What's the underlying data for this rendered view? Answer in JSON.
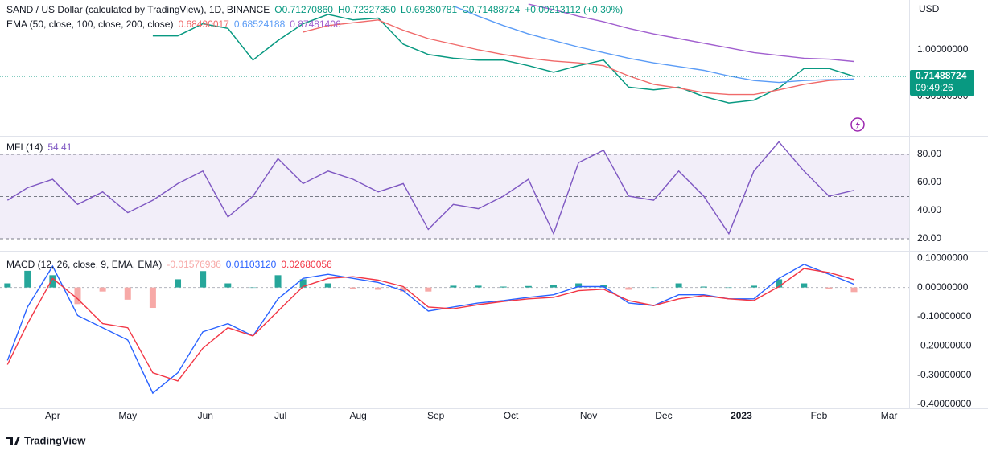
{
  "header": {
    "symbol": "SAND / US Dollar (calculated by TradingView), 1D, BINANCE",
    "ohlc": [
      "O0.71270860",
      "H0.72327850",
      "L0.69280781",
      "C0.71488724"
    ],
    "change": "+0.00213112 (+0.30%)",
    "currency": "USD"
  },
  "footer": "TradingView",
  "chart_data": [
    {
      "type": "line",
      "indicator": "EMA (50, close, 100, close, 200, close)",
      "x": [
        -18,
        -10,
        0,
        10,
        20,
        30,
        40,
        50,
        60,
        70,
        80,
        90,
        100,
        110,
        120,
        130,
        140,
        150,
        160,
        170,
        180,
        190,
        200,
        210,
        220,
        230,
        240,
        250,
        260,
        270,
        280,
        290,
        300,
        310,
        320
      ],
      "xlim": [
        -21,
        342
      ],
      "xticks": [
        {
          "value": 0,
          "label": "Apr"
        },
        {
          "value": 30,
          "label": "May"
        },
        {
          "value": 61,
          "label": "Jun"
        },
        {
          "value": 91,
          "label": "Jul"
        },
        {
          "value": 122,
          "label": "Aug"
        },
        {
          "value": 153,
          "label": "Sep"
        },
        {
          "value": 183,
          "label": "Oct"
        },
        {
          "value": 214,
          "label": "Nov"
        },
        {
          "value": 244,
          "label": "Dec"
        },
        {
          "value": 275,
          "label": "2023"
        },
        {
          "value": 306,
          "label": "Feb"
        },
        {
          "value": 334,
          "label": "Mar"
        }
      ],
      "ylim": [
        0.086,
        1.534
      ],
      "yticks": [
        {
          "value": 1,
          "label": "1.00000000"
        },
        {
          "value": 0.5,
          "label": "0.50000000"
        }
      ],
      "series": [
        {
          "color": "#089981",
          "values": [
            null,
            null,
            null,
            null,
            null,
            null,
            1.15,
            1.15,
            1.28,
            1.23,
            0.89,
            1.1,
            1.28,
            1.38,
            1.32,
            1.34,
            1.06,
            0.95,
            0.91,
            0.89,
            0.89,
            0.83,
            0.76,
            0.83,
            0.89,
            0.6,
            0.57,
            0.6,
            0.5,
            0.43,
            0.46,
            0.59,
            0.8,
            0.8,
            0.71488724
          ]
        },
        {
          "color": "#f06a6a",
          "values": [
            null,
            null,
            null,
            null,
            null,
            null,
            null,
            null,
            null,
            null,
            null,
            null,
            1.19,
            1.26,
            1.29,
            1.32,
            1.21,
            1.12,
            1.06,
            1.0,
            0.95,
            0.91,
            0.88,
            0.86,
            0.83,
            0.72,
            0.63,
            0.59,
            0.54,
            0.52,
            0.52,
            0.57,
            0.63,
            0.67,
            0.68490017
          ]
        },
        {
          "color": "#5b9cf6",
          "values": [
            null,
            null,
            null,
            null,
            null,
            null,
            null,
            null,
            null,
            null,
            null,
            null,
            null,
            null,
            null,
            null,
            null,
            null,
            1.47,
            1.36,
            1.26,
            1.17,
            1.1,
            1.03,
            0.97,
            0.91,
            0.86,
            0.82,
            0.78,
            0.72,
            0.67,
            0.65,
            0.67,
            0.68,
            0.68524188
          ]
        },
        {
          "color": "#a15fcf",
          "values": [
            null,
            null,
            null,
            null,
            null,
            null,
            null,
            null,
            null,
            null,
            null,
            null,
            null,
            null,
            null,
            null,
            null,
            null,
            null,
            null,
            null,
            1.49,
            1.43,
            1.36,
            1.3,
            1.23,
            1.17,
            1.12,
            1.07,
            1.02,
            0.97,
            0.94,
            0.91,
            0.9,
            0.87481406
          ]
        }
      ],
      "last_price": {
        "time": "09:49:26",
        "color": "#089981"
      }
    },
    {
      "type": "line",
      "title": "MFI (14)",
      "ylim": [
        12,
        92
      ],
      "yticks": [
        {
          "value": 80,
          "label": "80.00"
        },
        {
          "value": 60,
          "label": "60.00"
        },
        {
          "value": 40,
          "label": "40.00"
        },
        {
          "value": 20,
          "label": "20.00"
        }
      ],
      "levels": [
        20,
        50,
        80
      ],
      "band_color": "rgba(126,87,194,0.1)",
      "series": [
        {
          "color": "#7e57c2",
          "values": [
            47.4,
            56.3,
            62.2,
            44.4,
            53.3,
            38.5,
            47.4,
            59.2,
            68.1,
            35.5,
            50.3,
            77.0,
            59.2,
            68.1,
            62.2,
            53.3,
            59.2,
            26.6,
            44.4,
            41.4,
            50.3,
            62.2,
            23.6,
            74.1,
            83.0,
            50.3,
            47.4,
            68.1,
            50.3,
            23.6,
            68.1,
            88.9,
            68.1,
            50.3,
            54.41
          ]
        }
      ]
    },
    {
      "type": "line",
      "title": "MACD (12, 26, close, 9, EMA, EMA)",
      "ylim": [
        -0.414,
        0.12
      ],
      "yticks": [
        {
          "value": 0.1,
          "label": "0.10000000"
        },
        {
          "value": 0,
          "label": "0.00000000"
        },
        {
          "value": -0.1,
          "label": "-0.10000000"
        },
        {
          "value": -0.2,
          "label": "-0.20000000"
        },
        {
          "value": -0.3,
          "label": "-0.30000000"
        },
        {
          "value": -0.4,
          "label": "-0.40000000"
        }
      ],
      "zero_line": 0,
      "series": [
        {
          "kind": "histogram",
          "up_color": "#26a69a",
          "down_color": "#f7a9a7",
          "legend_value": "-0.01576936",
          "values": [
            0.014,
            0.057,
            0.042,
            -0.057,
            -0.014,
            -0.042,
            -0.07,
            0.028,
            0.056,
            0.014,
            0,
            0.042,
            0.028,
            0.014,
            -0.006,
            -0.008,
            -0.014,
            -0.014,
            0.006,
            0.006,
            0.003,
            0.005,
            0.009,
            0.014,
            0.009,
            -0.008,
            0,
            0.014,
            0.003,
            0,
            0.006,
            0.028,
            0.014,
            -0.006,
            -0.01576936
          ]
        },
        {
          "color": "#2962ff",
          "legend_value": "0.01103120",
          "values": [
            -0.25,
            -0.067,
            0.073,
            -0.096,
            -0.138,
            -0.18,
            -0.362,
            -0.292,
            -0.152,
            -0.124,
            -0.166,
            -0.039,
            0.031,
            0.045,
            0.031,
            0.017,
            -0.011,
            -0.081,
            -0.067,
            -0.053,
            -0.045,
            -0.034,
            -0.025,
            0.003,
            0.003,
            -0.053,
            -0.062,
            -0.025,
            -0.025,
            -0.039,
            -0.039,
            0.031,
            0.079,
            0.045,
            0.0110312
          ]
        },
        {
          "color": "#f23645",
          "legend_value": "0.02680056",
          "values": [
            -0.264,
            -0.124,
            0.031,
            -0.039,
            -0.124,
            -0.138,
            -0.292,
            -0.32,
            -0.208,
            -0.138,
            -0.166,
            -0.081,
            0.003,
            0.031,
            0.037,
            0.025,
            0.003,
            -0.067,
            -0.073,
            -0.059,
            -0.048,
            -0.039,
            -0.034,
            -0.011,
            -0.006,
            -0.045,
            -0.062,
            -0.039,
            -0.028,
            -0.039,
            -0.045,
            0.003,
            0.065,
            0.051,
            0.02680056
          ]
        }
      ]
    }
  ]
}
